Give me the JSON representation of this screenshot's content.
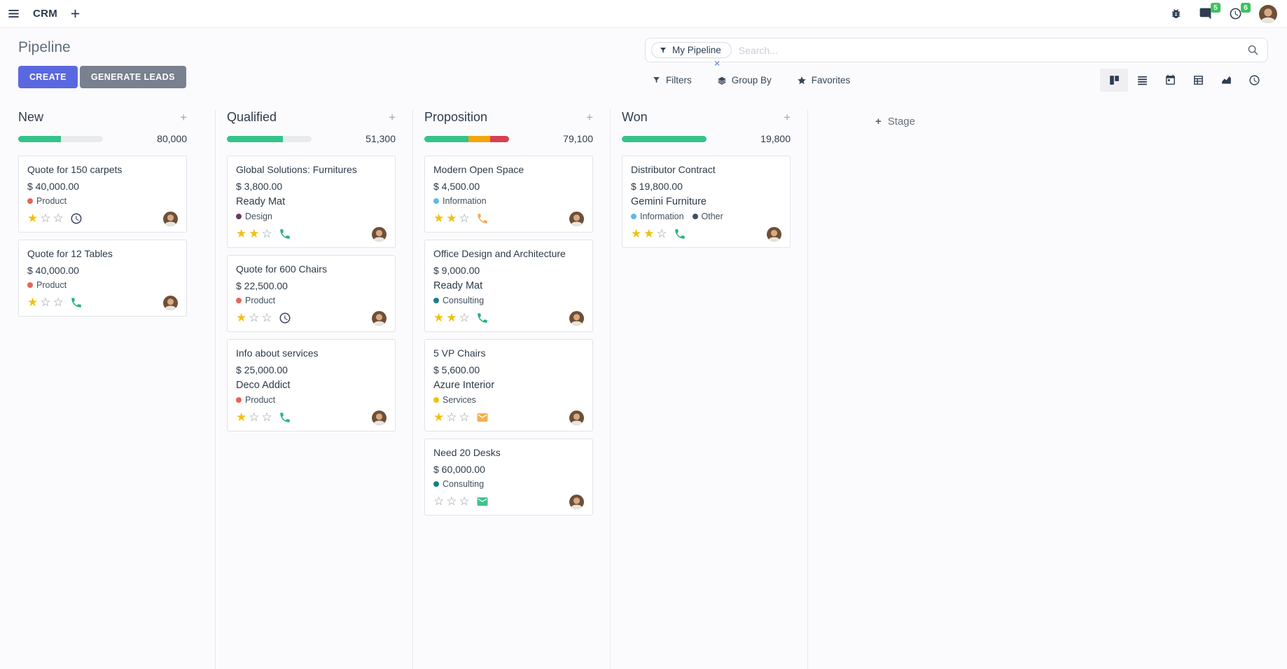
{
  "colors": {
    "primary_button": "#5a68e0",
    "secondary_button": "#79808f",
    "notification_badge": "#3bc35f",
    "progress_green": "#34c38a",
    "progress_orange": "#f2a60c",
    "progress_red": "#d9404f",
    "star_filled": "#f0c10f"
  },
  "navbar": {
    "app_name": "CRM",
    "messages_badge": "5",
    "activities_badge": "6"
  },
  "control_panel": {
    "title": "Pipeline",
    "create_label": "CREATE",
    "generate_leads_label": "GENERATE LEADS",
    "search_facet": "My Pipeline",
    "search_placeholder": "Search...",
    "filters_label": "Filters",
    "group_by_label": "Group By",
    "favorites_label": "Favorites"
  },
  "board": {
    "add_stage_label": "Stage",
    "columns": [
      {
        "name": "New",
        "total": "80,000",
        "progress": [
          {
            "color": "#34c38a",
            "pct": 50
          }
        ],
        "cards": [
          {
            "title": "Quote for 150 carpets",
            "amount": "$ 40,000.00",
            "tags": [
              {
                "label": "Product",
                "color": "#e8645a"
              }
            ],
            "stars": 1,
            "icon": "clock-icon",
            "icon_color": "#39435c"
          },
          {
            "title": "Quote for 12 Tables",
            "amount": "$ 40,000.00",
            "tags": [
              {
                "label": "Product",
                "color": "#e8645a"
              }
            ],
            "stars": 1,
            "icon": "phone-icon",
            "icon_color": "#26b57a"
          }
        ]
      },
      {
        "name": "Qualified",
        "total": "51,300",
        "progress": [
          {
            "color": "#34c38a",
            "pct": 66
          }
        ],
        "cards": [
          {
            "title": "Global Solutions: Furnitures",
            "amount": "$ 3,800.00",
            "company": "Ready Mat",
            "tags": [
              {
                "label": "Design",
                "color": "#6b3a62"
              }
            ],
            "stars": 2,
            "icon": "phone-icon",
            "icon_color": "#26b57a"
          },
          {
            "title": "Quote for 600 Chairs",
            "amount": "$ 22,500.00",
            "tags": [
              {
                "label": "Product",
                "color": "#e8645a"
              }
            ],
            "stars": 1,
            "icon": "clock-icon",
            "icon_color": "#39435c"
          },
          {
            "title": "Info about services",
            "amount": "$ 25,000.00",
            "company": "Deco Addict",
            "tags": [
              {
                "label": "Product",
                "color": "#e8645a"
              }
            ],
            "stars": 1,
            "icon": "phone-icon",
            "icon_color": "#26b57a"
          }
        ]
      },
      {
        "name": "Proposition",
        "total": "79,100",
        "progress": [
          {
            "color": "#34c38a",
            "pct": 52
          },
          {
            "color": "#f2a60c",
            "pct": 26
          },
          {
            "color": "#d9404f",
            "pct": 22
          }
        ],
        "cards": [
          {
            "title": "Modern Open Space",
            "amount": "$ 4,500.00",
            "tags": [
              {
                "label": "Information",
                "color": "#62b6e8"
              }
            ],
            "stars": 2,
            "icon": "phone-icon",
            "icon_color": "#f2ab59"
          },
          {
            "title": "Office Design and Architecture",
            "amount": "$ 9,000.00",
            "company": "Ready Mat",
            "tags": [
              {
                "label": "Consulting",
                "color": "#1b7d8a"
              }
            ],
            "stars": 2,
            "icon": "phone-icon",
            "icon_color": "#26b57a"
          },
          {
            "title": "5 VP Chairs",
            "amount": "$ 5,600.00",
            "company": "Azure Interior",
            "tags": [
              {
                "label": "Services",
                "color": "#eec20d"
              }
            ],
            "stars": 1,
            "icon": "envelope-icon",
            "icon_color": "#f0b14e"
          },
          {
            "title": "Need 20 Desks",
            "amount": "$ 60,000.00",
            "tags": [
              {
                "label": "Consulting",
                "color": "#1b7d8a"
              }
            ],
            "stars": 0,
            "icon": "envelope-icon",
            "icon_color": "#3cc389"
          }
        ]
      },
      {
        "name": "Won",
        "total": "19,800",
        "progress": [
          {
            "color": "#34c38a",
            "pct": 100
          }
        ],
        "cards": [
          {
            "title": "Distributor Contract",
            "amount": "$ 19,800.00",
            "company": "Gemini Furniture",
            "tags": [
              {
                "label": "Information",
                "color": "#62b6e8"
              },
              {
                "label": "Other",
                "color": "#3d4f66"
              }
            ],
            "stars": 2,
            "icon": "phone-icon",
            "icon_color": "#26b57a"
          }
        ]
      }
    ]
  }
}
